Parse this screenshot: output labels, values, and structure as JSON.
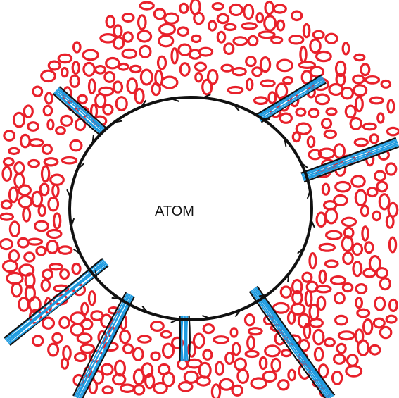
{
  "label": "ATOM",
  "colors": {
    "background": "#ffffff",
    "particles": "#e8212b",
    "boundary": "#111111",
    "streams": "#1e9be0"
  }
}
